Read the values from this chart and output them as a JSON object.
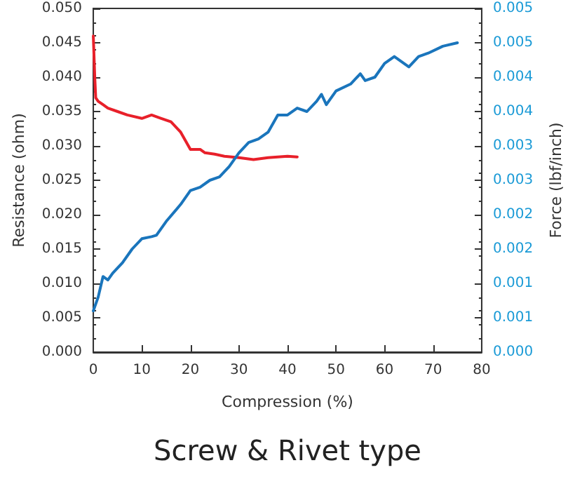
{
  "chart_data": {
    "type": "line",
    "title": "Screw & Rivet type",
    "xlabel": "Compression (%)",
    "ylabel": "Resistance (ohm)",
    "y2label": "Force (lbf/inch)",
    "xlim": [
      0,
      80
    ],
    "xticks": [
      0,
      10,
      20,
      30,
      40,
      50,
      60,
      70,
      80
    ],
    "ylim": [
      0,
      0.05
    ],
    "yticks": [
      {
        "value": 0,
        "label": "0.000"
      },
      {
        "value": 0.005,
        "label": "0.005"
      },
      {
        "value": 0.01,
        "label": "0.010"
      },
      {
        "value": 0.015,
        "label": "0.015"
      },
      {
        "value": 0.02,
        "label": "0.020"
      },
      {
        "value": 0.025,
        "label": "0.025"
      },
      {
        "value": 0.03,
        "label": "0.030"
      },
      {
        "value": 0.035,
        "label": "0.035"
      },
      {
        "value": 0.04,
        "label": "0.040"
      },
      {
        "value": 0.045,
        "label": "0.045"
      },
      {
        "value": 0.05,
        "label": "0.050"
      }
    ],
    "y2lim": [
      0,
      0.005
    ],
    "y2ticks": [
      {
        "value": 0,
        "label": "0.000"
      },
      {
        "value": 0.0005,
        "label": "0.001"
      },
      {
        "value": 0.001,
        "label": "0.001"
      },
      {
        "value": 0.0015,
        "label": "0.002"
      },
      {
        "value": 0.002,
        "label": "0.002"
      },
      {
        "value": 0.0025,
        "label": "0.003"
      },
      {
        "value": 0.003,
        "label": "0.003"
      },
      {
        "value": 0.0035,
        "label": "0.004"
      },
      {
        "value": 0.004,
        "label": "0.004"
      },
      {
        "value": 0.0045,
        "label": "0.005"
      },
      {
        "value": 0.005,
        "label": "0.005"
      }
    ],
    "grid": false,
    "marker": "none",
    "line_style": "solid",
    "series": [
      {
        "color": "#e8202a",
        "x": [
          0,
          0.3,
          0.5,
          1,
          2,
          3,
          5,
          7,
          10,
          12,
          14,
          16,
          18,
          20,
          22,
          23,
          25,
          27,
          30,
          33,
          36,
          40,
          42
        ],
        "values": [
          0.046,
          0.04,
          0.037,
          0.0365,
          0.036,
          0.0355,
          0.035,
          0.0345,
          0.034,
          0.0345,
          0.034,
          0.0335,
          0.032,
          0.0295,
          0.0295,
          0.029,
          0.0288,
          0.0285,
          0.0283,
          0.028,
          0.0283,
          0.0285,
          0.0284
        ]
      },
      {
        "color": "#1a75bc",
        "axis": "y2",
        "x": [
          0,
          1,
          2,
          3,
          4,
          6,
          8,
          10,
          12,
          13,
          15,
          18,
          20,
          22,
          24,
          26,
          28,
          30,
          32,
          34,
          36,
          38,
          40,
          42,
          44,
          46,
          47,
          48,
          50,
          53,
          55,
          56,
          58,
          60,
          62,
          65,
          67,
          69,
          72,
          75
        ],
        "values": [
          0.0006,
          0.0008,
          0.0011,
          0.00105,
          0.00115,
          0.0013,
          0.0015,
          0.00165,
          0.00168,
          0.0017,
          0.0019,
          0.00215,
          0.00235,
          0.0024,
          0.0025,
          0.00255,
          0.0027,
          0.0029,
          0.00305,
          0.0031,
          0.0032,
          0.00345,
          0.00345,
          0.00355,
          0.0035,
          0.00365,
          0.00375,
          0.0036,
          0.0038,
          0.0039,
          0.00405,
          0.00395,
          0.004,
          0.0042,
          0.0043,
          0.00415,
          0.0043,
          0.00435,
          0.00445,
          0.0045
        ]
      }
    ]
  }
}
